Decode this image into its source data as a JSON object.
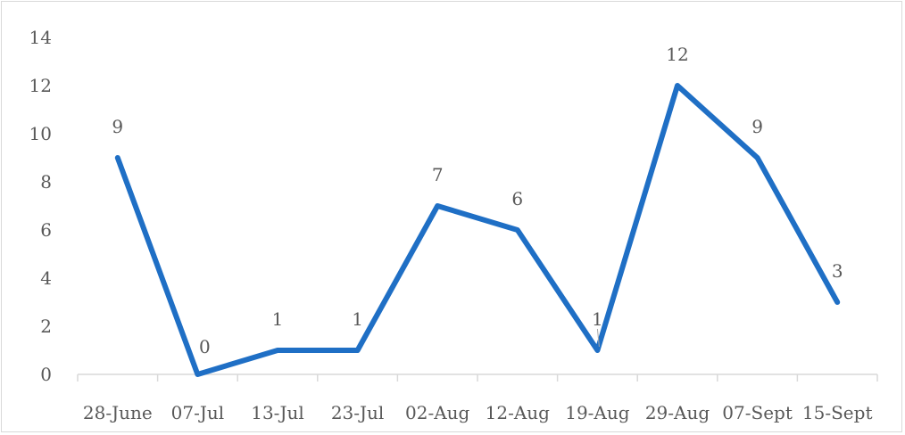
{
  "chart_data": {
    "type": "line",
    "title": "",
    "xlabel": "",
    "ylabel": "",
    "categories": [
      "28-June",
      "07-Jul",
      "13-Jul",
      "23-Jul",
      "02-Aug",
      "12-Aug",
      "19-Aug",
      "29-Aug",
      "07-Sept",
      "15-Sept"
    ],
    "series": [
      {
        "values": [
          9,
          0,
          1,
          1,
          7,
          6,
          1,
          12,
          9,
          3
        ]
      }
    ],
    "ylim": [
      0,
      14
    ],
    "yticks": [
      0,
      2,
      4,
      6,
      8,
      10,
      12,
      14
    ],
    "grid": false,
    "legend": "none",
    "data_labels": true,
    "colors": {
      "line": "#1f6fc5",
      "axis": "#d9d9d9",
      "text": "#595959"
    }
  }
}
